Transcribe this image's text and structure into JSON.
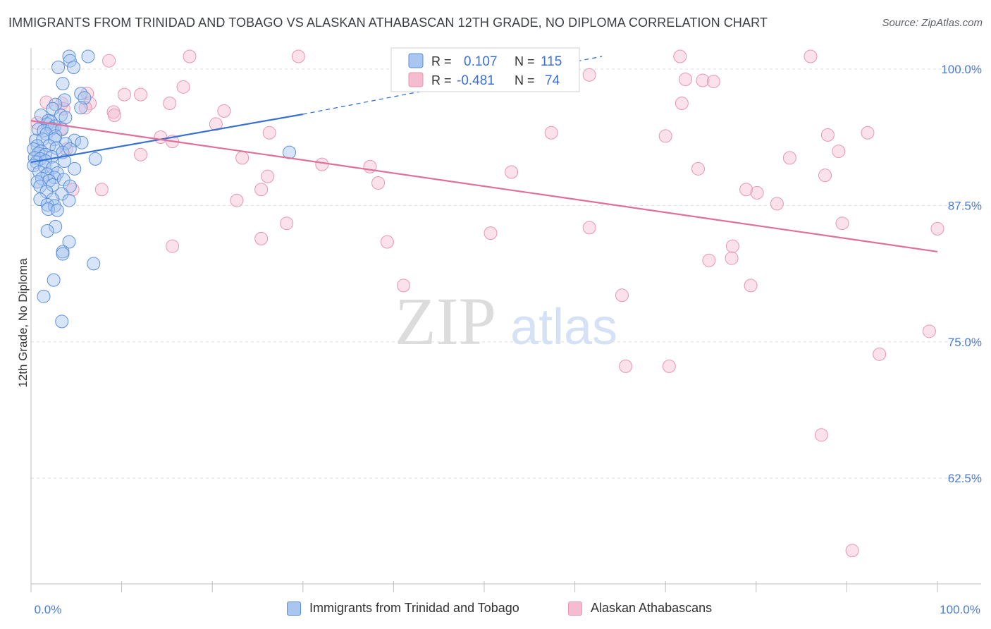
{
  "header": {
    "title": "IMMIGRANTS FROM TRINIDAD AND TOBAGO VS ALASKAN ATHABASCAN 12TH GRADE, NO DIPLOMA CORRELATION CHART",
    "source": "Source: ZipAtlas.com"
  },
  "watermark": {
    "zip": "ZIP",
    "atlas": "atlas"
  },
  "stats_legend": {
    "r_label": "R =",
    "n_label": "N =",
    "rows": [
      {
        "r": "0.107",
        "n": "115"
      },
      {
        "r": "-0.481",
        "n": "74"
      }
    ]
  },
  "colors": {
    "blue_fill": "#a9c6f0",
    "blue_stroke": "#5b8fdc",
    "blue_line": "#3672d4",
    "pink_fill": "#f5bcd0",
    "pink_stroke": "#e995b4",
    "pink_line": "#e0709a",
    "tick_text": "#4a7bd0",
    "grid": "#dddddd"
  },
  "chart_data": {
    "type": "scatter",
    "xlabel": "",
    "ylabel": "12th Grade, No Diploma",
    "xlim": [
      0,
      100
    ],
    "ylim": [
      51,
      102
    ],
    "x_tick_labels": [
      "0.0%",
      "100.0%"
    ],
    "y_ticks": [
      62.5,
      75.0,
      87.5,
      100.0
    ],
    "y_tick_labels": [
      "62.5%",
      "75.0%",
      "87.5%",
      "100.0%"
    ],
    "grid": "horizontal dashed",
    "legend": "bottom-center",
    "series": [
      {
        "name": "Immigrants from Trinidad and Tobago",
        "color": "blue",
        "r": 0.107,
        "n": 115,
        "trend": {
          "x": [
            0,
            30
          ],
          "y": [
            90.3,
            94.7
          ],
          "dashed_to": [
            63,
            100
          ]
        },
        "points": [
          [
            4.2,
            100.0
          ],
          [
            6.3,
            100.0
          ],
          [
            4.3,
            99.6
          ],
          [
            3.0,
            99.0
          ],
          [
            4.7,
            99.0
          ],
          [
            3.5,
            97.5
          ],
          [
            5.5,
            96.6
          ],
          [
            5.9,
            96.2
          ],
          [
            3.7,
            96.0
          ],
          [
            2.7,
            95.6
          ],
          [
            5.5,
            95.3
          ],
          [
            2.4,
            95.2
          ],
          [
            1.1,
            94.6
          ],
          [
            3.3,
            94.6
          ],
          [
            1.9,
            94.1
          ],
          [
            3.8,
            94.4
          ],
          [
            2.2,
            94.0
          ],
          [
            1.8,
            93.8
          ],
          [
            2.6,
            93.6
          ],
          [
            0.8,
            93.3
          ],
          [
            1.4,
            93.2
          ],
          [
            2.3,
            93.4
          ],
          [
            3.4,
            93.3
          ],
          [
            1.7,
            92.9
          ],
          [
            2.7,
            92.7
          ],
          [
            0.5,
            92.3
          ],
          [
            1.3,
            92.4
          ],
          [
            2.6,
            92.4
          ],
          [
            4.8,
            92.3
          ],
          [
            5.6,
            92.1
          ],
          [
            3.8,
            92.0
          ],
          [
            0.7,
            91.8
          ],
          [
            2.0,
            91.8
          ],
          [
            0.3,
            91.5
          ],
          [
            1.1,
            91.3
          ],
          [
            2.8,
            91.6
          ],
          [
            0.8,
            91.1
          ],
          [
            1.6,
            91.0
          ],
          [
            2.3,
            90.8
          ],
          [
            0.4,
            90.7
          ],
          [
            1.0,
            90.6
          ],
          [
            3.5,
            91.2
          ],
          [
            4.3,
            91.5
          ],
          [
            7.1,
            90.6
          ],
          [
            28.5,
            91.2
          ],
          [
            0.6,
            90.3
          ],
          [
            1.6,
            90.4
          ],
          [
            3.7,
            90.4
          ],
          [
            0.3,
            90.0
          ],
          [
            1.5,
            89.9
          ],
          [
            2.4,
            89.8
          ],
          [
            4.8,
            89.7
          ],
          [
            0.9,
            89.4
          ],
          [
            1.8,
            89.2
          ],
          [
            2.9,
            89.3
          ],
          [
            1.2,
            88.8
          ],
          [
            2.6,
            88.9
          ],
          [
            3.6,
            88.7
          ],
          [
            0.7,
            88.5
          ],
          [
            2.0,
            88.6
          ],
          [
            1.0,
            88.1
          ],
          [
            2.4,
            88.2
          ],
          [
            4.3,
            88.1
          ],
          [
            1.7,
            87.6
          ],
          [
            3.4,
            87.4
          ],
          [
            1.0,
            86.9
          ],
          [
            2.4,
            86.9
          ],
          [
            4.2,
            86.8
          ],
          [
            1.8,
            86.4
          ],
          [
            2.6,
            86.3
          ],
          [
            1.9,
            86.0
          ],
          [
            2.9,
            85.9
          ],
          [
            2.7,
            84.4
          ],
          [
            1.8,
            84.0
          ],
          [
            4.2,
            83.0
          ],
          [
            3.5,
            82.1
          ],
          [
            3.5,
            81.9
          ],
          [
            6.9,
            81.0
          ],
          [
            2.5,
            79.5
          ],
          [
            1.4,
            78.0
          ],
          [
            3.4,
            75.7
          ]
        ]
      },
      {
        "name": "Alaskan Athabascans",
        "color": "pink",
        "r": -0.481,
        "n": 74,
        "trend": {
          "x": [
            0,
            100
          ],
          "y": [
            94.1,
            82.1
          ]
        },
        "points": [
          [
            17.5,
            100.0
          ],
          [
            29.5,
            100.0
          ],
          [
            71.6,
            100.0
          ],
          [
            86.0,
            100.0
          ],
          [
            8.6,
            99.6
          ],
          [
            61.6,
            98.3
          ],
          [
            72.2,
            97.9
          ],
          [
            74.1,
            97.8
          ],
          [
            75.3,
            97.7
          ],
          [
            16.8,
            97.2
          ],
          [
            6.2,
            96.6
          ],
          [
            10.3,
            96.5
          ],
          [
            12.1,
            96.5
          ],
          [
            1.7,
            95.8
          ],
          [
            3.4,
            95.7
          ],
          [
            6.5,
            95.7
          ],
          [
            15.3,
            95.7
          ],
          [
            71.8,
            95.7
          ],
          [
            6.0,
            95.3
          ],
          [
            3.6,
            95.2
          ],
          [
            21.3,
            95.0
          ],
          [
            9.1,
            94.9
          ],
          [
            9.2,
            94.6
          ],
          [
            0.7,
            93.9
          ],
          [
            20.4,
            93.8
          ],
          [
            3.4,
            93.4
          ],
          [
            26.3,
            93.0
          ],
          [
            57.4,
            93.0
          ],
          [
            92.3,
            93.0
          ],
          [
            14.3,
            92.6
          ],
          [
            70.0,
            92.7
          ],
          [
            87.9,
            92.8
          ],
          [
            15.6,
            92.2
          ],
          [
            3.9,
            91.5
          ],
          [
            89.1,
            91.3
          ],
          [
            12.1,
            91.0
          ],
          [
            23.3,
            90.7
          ],
          [
            83.7,
            90.7
          ],
          [
            32.1,
            90.1
          ],
          [
            37.4,
            89.9
          ],
          [
            73.6,
            89.7
          ],
          [
            53.0,
            89.4
          ],
          [
            26.1,
            89.0
          ],
          [
            87.6,
            89.1
          ],
          [
            38.3,
            88.4
          ],
          [
            4.6,
            87.8
          ],
          [
            7.8,
            87.8
          ],
          [
            25.4,
            87.8
          ],
          [
            78.9,
            87.8
          ],
          [
            80.1,
            87.5
          ],
          [
            22.7,
            86.8
          ],
          [
            82.3,
            86.5
          ],
          [
            28.2,
            84.7
          ],
          [
            89.5,
            84.7
          ],
          [
            61.6,
            84.3
          ],
          [
            100.0,
            84.2
          ],
          [
            50.7,
            83.8
          ],
          [
            25.4,
            83.3
          ],
          [
            39.3,
            83.0
          ],
          [
            15.6,
            82.6
          ],
          [
            77.4,
            82.6
          ],
          [
            74.8,
            81.3
          ],
          [
            77.3,
            81.5
          ],
          [
            41.1,
            79.0
          ],
          [
            79.4,
            79.0
          ],
          [
            65.2,
            78.1
          ],
          [
            99.1,
            74.8
          ],
          [
            93.6,
            72.7
          ],
          [
            65.6,
            71.6
          ],
          [
            70.4,
            71.6
          ],
          [
            87.2,
            65.3
          ],
          [
            90.6,
            54.7
          ]
        ]
      }
    ]
  },
  "bottom_legend": [
    {
      "label": "Immigrants from Trinidad and Tobago"
    },
    {
      "label": "Alaskan Athabascans"
    }
  ]
}
